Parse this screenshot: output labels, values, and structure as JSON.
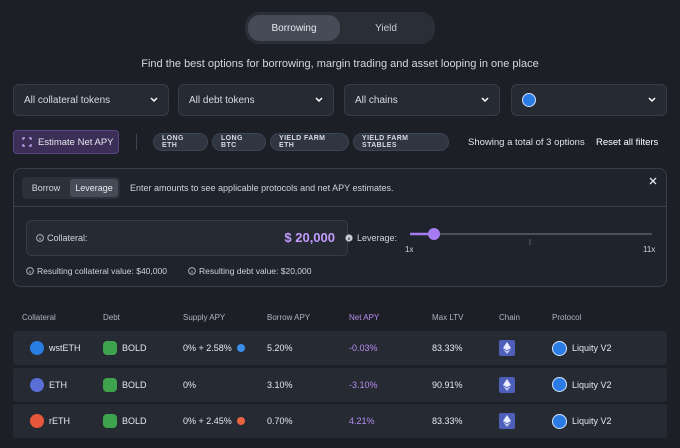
{
  "tabs": [
    "Borrowing",
    "Yield"
  ],
  "tagline": "Find the best options for borrowing, margin trading and asset looping in one place",
  "filters": [
    "All collateral tokens",
    "All debt tokens",
    "All chains"
  ],
  "estimate_button": "Estimate Net APY",
  "chips": [
    "LONG ETH",
    "LONG BTC",
    "YIELD FARM ETH",
    "YIELD FARM STABLES"
  ],
  "summary": "Showing a total of 3 options",
  "reset": "Reset all filters",
  "panel": {
    "modes": [
      "Borrow",
      "Leverage"
    ],
    "hint": "Enter amounts to see applicable protocols and net APY estimates.",
    "collateral_label": "Collateral:",
    "collateral_value": "$ 20,000",
    "leverage_label": "Leverage:",
    "slider_min": "1x",
    "slider_max": "11x",
    "resulting_collateral": "Resulting collateral value: $40,000",
    "resulting_debt": "Resulting debt value: $20,000"
  },
  "table": {
    "headers": [
      "Collateral",
      "Debt",
      "Supply APY",
      "Borrow APY",
      "Net APY",
      "Max LTV",
      "Chain",
      "Protocol"
    ],
    "rows": [
      [
        "wstETH",
        "BOLD",
        "0% + 2.58%",
        "5.20%",
        "-0.03%",
        "83.33%",
        "Liquity V2"
      ],
      [
        "ETH",
        "BOLD",
        "0%",
        "3.10%",
        "-3.10%",
        "90.91%",
        "Liquity V2"
      ],
      [
        "rETH",
        "BOLD",
        "0% + 2.45%",
        "0.70%",
        "4.21%",
        "83.33%",
        "Liquity V2"
      ]
    ]
  }
}
